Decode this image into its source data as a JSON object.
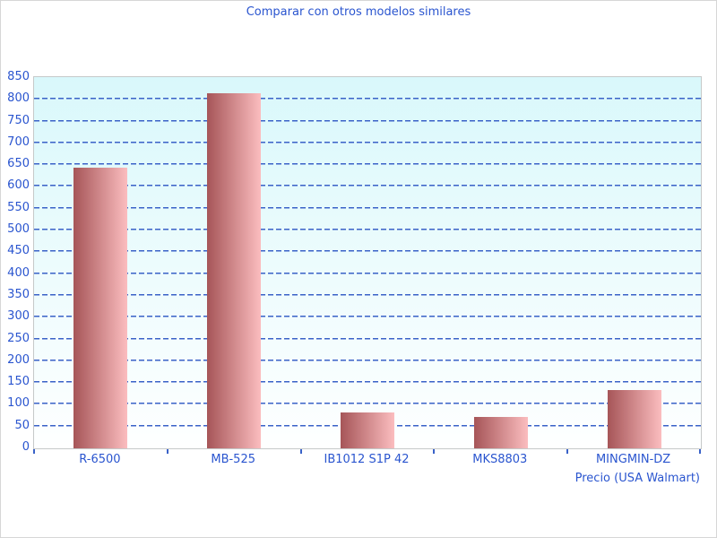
{
  "page": {
    "background_color": "#ffffff",
    "border_color": "#d6d6d6"
  },
  "chart_data": {
    "type": "bar",
    "title": "Comparar con otros modelos similares",
    "categories": [
      "R-6500",
      "MB-525",
      "IB1012 S1P 42",
      "MKS8803",
      "MINGMIN-DZ"
    ],
    "values": [
      645,
      816,
      82,
      72,
      133
    ],
    "xlabel": "Precio (USA Walmart)",
    "ylabel": "",
    "ylim": [
      0,
      850
    ],
    "y_ticks": [
      0,
      50,
      100,
      150,
      200,
      250,
      300,
      350,
      400,
      450,
      500,
      550,
      600,
      650,
      700,
      750,
      800,
      850
    ],
    "grid": {
      "horizontal": true,
      "style": "dashed"
    },
    "legend": "none",
    "colors": {
      "label_color": "#2a55cf",
      "grid_color": "#3a62c8",
      "axis_border_color": "#c6c9c9",
      "plot_bg_top": "#d9f8fb",
      "plot_bg_bottom": "#feffff",
      "bar_gradient_left": "#a65558",
      "bar_gradient_right": "#fbbdbf"
    }
  }
}
